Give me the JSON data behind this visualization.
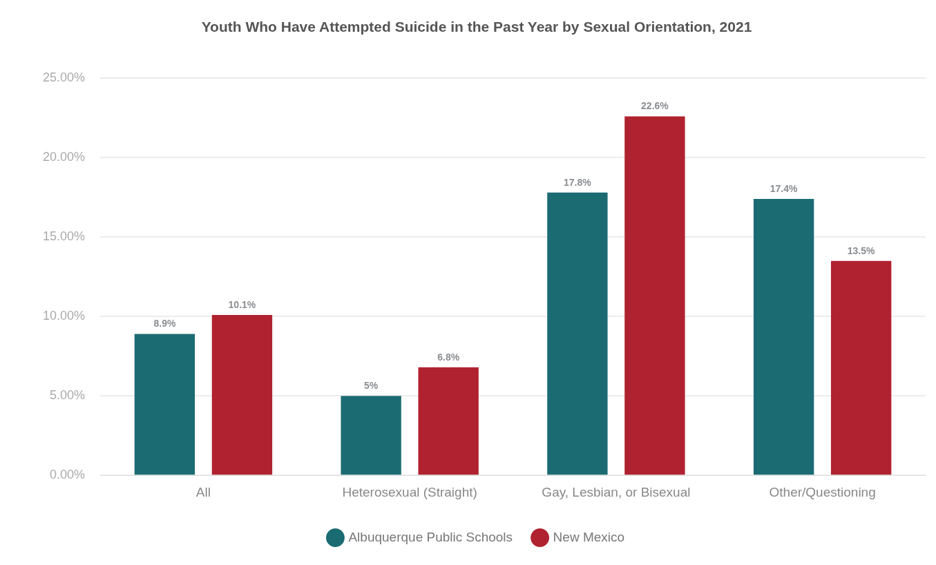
{
  "chart_data": {
    "type": "bar",
    "title": "Youth Who Have Attempted Suicide in the Past Year by Sexual Orientation, 2021",
    "categories": [
      "All",
      "Heterosexual (Straight)",
      "Gay, Lesbian, or Bisexual",
      "Other/Questioning"
    ],
    "series": [
      {
        "name": "Albuquerque Public Schools",
        "color": "#1b6b72",
        "values": [
          8.9,
          5,
          17.8,
          17.4
        ],
        "value_labels": [
          "8.9%",
          "5%",
          "17.8%",
          "17.4%"
        ]
      },
      {
        "name": "New Mexico",
        "color": "#b0222f",
        "values": [
          10.1,
          6.8,
          22.6,
          13.5
        ],
        "value_labels": [
          "10.1%",
          "6.8%",
          "22.6%",
          "13.5%"
        ]
      }
    ],
    "ylim": [
      0,
      25
    ],
    "yticks": [
      {
        "value": 0,
        "label": "0.00%"
      },
      {
        "value": 5,
        "label": "5.00%"
      },
      {
        "value": 10,
        "label": "10.00%"
      },
      {
        "value": 15,
        "label": "15.00%"
      },
      {
        "value": 20,
        "label": "20.00%"
      },
      {
        "value": 25,
        "label": "25.00%"
      }
    ],
    "grid": "y",
    "legend": "bottom"
  }
}
